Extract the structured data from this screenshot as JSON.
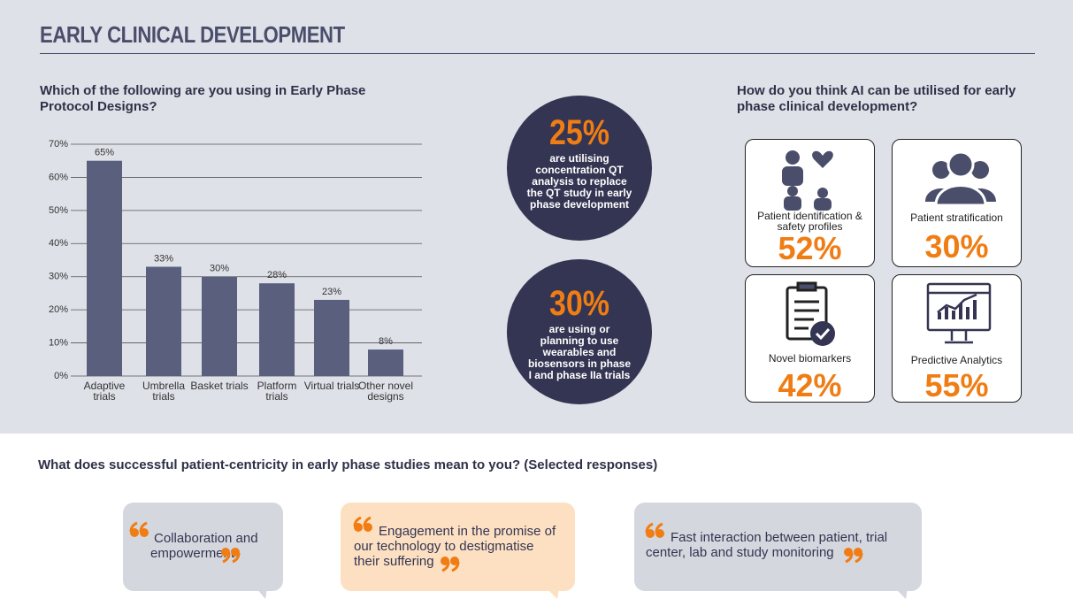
{
  "header": {
    "title": "EARLY CLINICAL DEVELOPMENT"
  },
  "chart_data": {
    "type": "bar",
    "title": "Which of the following are you using in Early Phase Protocol Designs?",
    "categories": [
      "Adaptive trials",
      "Umbrella trials",
      "Basket trials",
      "Platform trials",
      "Virtual trials",
      "Other novel designs"
    ],
    "values": [
      65,
      33,
      30,
      28,
      23,
      8
    ],
    "value_labels": [
      "65%",
      "33%",
      "30%",
      "28%",
      "23%",
      "8%"
    ],
    "color": "#5a5f7d",
    "ylim": [
      0,
      70
    ],
    "yticks": [
      {
        "value": 0,
        "label": "0%"
      },
      {
        "value": 10,
        "label": "10%"
      },
      {
        "value": 20,
        "label": "20%"
      },
      {
        "value": 30,
        "label": "30%"
      },
      {
        "value": 40,
        "label": "40%"
      },
      {
        "value": 50,
        "label": "50%"
      },
      {
        "value": 60,
        "label": "60%"
      },
      {
        "value": 70,
        "label": "70%"
      }
    ],
    "grid": true
  },
  "stats": [
    {
      "value": "25%",
      "text": "are utilising concentration QT analysis to replace the QT study in early phase development"
    },
    {
      "value": "30%",
      "text": "are using or planning to use wearables and biosensors in phase I and phase IIa trials"
    }
  ],
  "ai": {
    "title": "How do you think AI can be utilised for early phase clinical development?",
    "cards": [
      {
        "label": "Patient identification  & safety profiles",
        "value": "52%"
      },
      {
        "label": "Patient stratification",
        "value": "30%"
      },
      {
        "label": "Novel biomarkers",
        "value": "42%"
      },
      {
        "label": "Predictive Analytics",
        "value": "55%"
      }
    ]
  },
  "quotes": {
    "title": "What does successful patient-centricity in early phase studies mean to you? (Selected responses)",
    "items": [
      "Collaboration and empowerment",
      "Engagement in the promise of our technology to destigmatise their suffering",
      "Fast interaction between patient, trial center, lab and study monitoring"
    ]
  }
}
